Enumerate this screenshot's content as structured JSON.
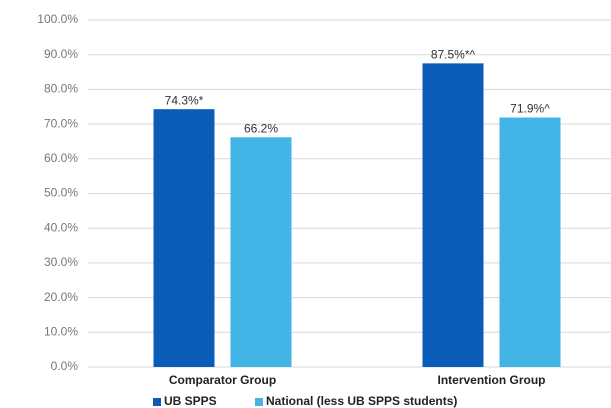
{
  "chart_data": {
    "type": "bar",
    "categories": [
      "Comparator Group",
      "Intervention Group"
    ],
    "series": [
      {
        "name": "UB SPPS",
        "color": "#0b5cb8",
        "values": [
          74.3,
          87.5
        ],
        "value_labels": [
          "74.3%*",
          "87.5%*^"
        ]
      },
      {
        "name": "National  (less UB SPPS students)",
        "color": "#42b4e6",
        "values": [
          66.2,
          71.9
        ],
        "value_labels": [
          "66.2%",
          "71.9%^"
        ]
      }
    ],
    "ylim": [
      0,
      100
    ],
    "yticks": [
      {
        "value": 0,
        "label": "0.0%"
      },
      {
        "value": 10,
        "label": "10.0%"
      },
      {
        "value": 20,
        "label": "20.0%"
      },
      {
        "value": 30,
        "label": "30.0%"
      },
      {
        "value": 40,
        "label": "40.0%"
      },
      {
        "value": 50,
        "label": "50.0%"
      },
      {
        "value": 60,
        "label": "60.0%"
      },
      {
        "value": 70,
        "label": "70.0%"
      },
      {
        "value": 80,
        "label": "80.0%"
      },
      {
        "value": 90,
        "label": "90.0%"
      },
      {
        "value": 100,
        "label": "100.0%"
      }
    ],
    "grid": true,
    "legend": "bottom"
  }
}
